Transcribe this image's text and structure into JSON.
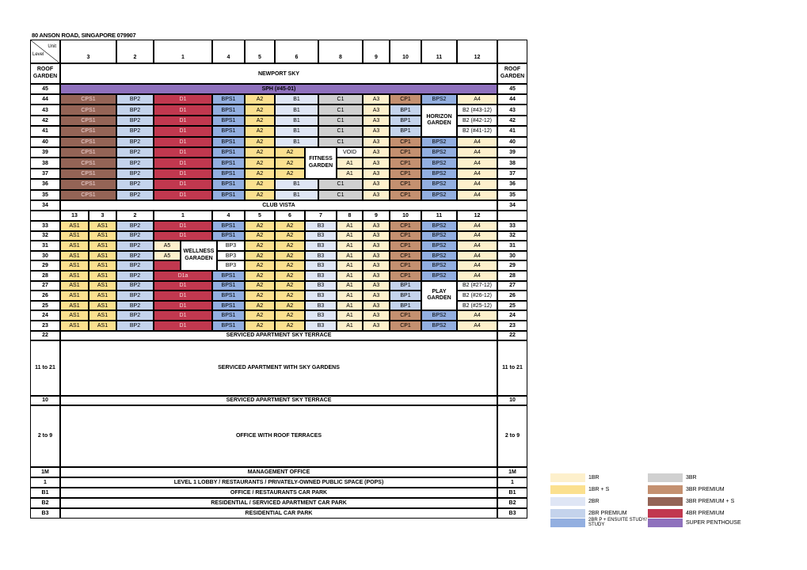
{
  "address": "80 ANSON ROAD, SINGAPORE 079907",
  "colors": {
    "A1": "#fdf0cc",
    "A3": "#fdf0cc",
    "A4": "#fdf0cc",
    "A5": "#fdf0cc",
    "AS1": "#fbe08f",
    "A2": "#fbe08f",
    "B1": "#dfe6f5",
    "B3": "#dfe6f5",
    "BP1": "#c4d3ec",
    "BP2": "#c4d3ec",
    "BPS1": "#93afe0",
    "BPS2": "#93afe0",
    "C1": "#d0d0d0",
    "CP1": "#c49070",
    "CPS1": "#946456",
    "D1": "#c1384f",
    "D1a": "#c1384f",
    "SPH": "#8f71bd",
    "B2": "#ffffff"
  },
  "header": {
    "unit_label": "Unit",
    "level_label": "Level",
    "columns": [
      "3",
      "2",
      "1",
      "4",
      "5",
      "6",
      "8",
      "9",
      "10",
      "11",
      "12"
    ]
  },
  "sub_header_columns": [
    "13",
    "3",
    "2",
    "1",
    "4",
    "5",
    "6",
    "7",
    "8",
    "9",
    "10",
    "11",
    "12"
  ],
  "upper_rows": [
    {
      "level": "44",
      "cells": [
        "CPS1",
        "BP2",
        "D1",
        "BPS1",
        "A2",
        "B1",
        "C1",
        "A3",
        "CP1",
        "BPS2",
        "A4"
      ]
    },
    {
      "level": "43",
      "cells": [
        "CPS1",
        "BP2",
        "D1",
        "BPS1",
        "A2",
        "B1",
        "C1",
        "A3",
        "BP1",
        "",
        "B2 (#43-12)"
      ]
    },
    {
      "level": "42",
      "cells": [
        "CPS1",
        "BP2",
        "D1",
        "BPS1",
        "A2",
        "B1",
        "C1",
        "A3",
        "BP1",
        "",
        "B2 (#42-12)"
      ]
    },
    {
      "level": "41",
      "cells": [
        "CPS1",
        "BP2",
        "D1",
        "BPS1",
        "A2",
        "B1",
        "C1",
        "A3",
        "BP1",
        "",
        "B2 (#41-12)"
      ]
    },
    {
      "level": "40",
      "cells": [
        "CPS1",
        "BP2",
        "D1",
        "BPS1",
        "A2",
        "B1",
        "C1",
        "A3",
        "CP1",
        "BPS2",
        "A4"
      ]
    },
    {
      "level": "39",
      "cells": [
        "CPS1",
        "BP2",
        "D1",
        "BPS1",
        "A2",
        "A2",
        "VOID",
        "A3",
        "CP1",
        "BPS2",
        "A4"
      ]
    },
    {
      "level": "38",
      "cells": [
        "CPS1",
        "BP2",
        "D1",
        "BPS1",
        "A2",
        "A2",
        "A1",
        "A3",
        "CP1",
        "BPS2",
        "A4"
      ]
    },
    {
      "level": "37",
      "cells": [
        "CPS1",
        "BP2",
        "D1",
        "BPS1",
        "A2",
        "A2",
        "A1",
        "A3",
        "CP1",
        "BPS2",
        "A4"
      ]
    },
    {
      "level": "36",
      "cells": [
        "CPS1",
        "BP2",
        "D1",
        "BPS1",
        "A2",
        "B1",
        "C1",
        "A3",
        "CP1",
        "BPS2",
        "A4"
      ]
    },
    {
      "level": "35",
      "cells": [
        "CPS1",
        "BP2",
        "D1",
        "BPS1",
        "A2",
        "B1",
        "C1",
        "A3",
        "CP1",
        "BPS2",
        "A4"
      ]
    }
  ],
  "lower_rows": [
    {
      "level": "33",
      "cells": [
        "AS1",
        "AS1",
        "BP2",
        "D1",
        "BPS1",
        "A2",
        "A2",
        "B3",
        "A1",
        "A3",
        "CP1",
        "BPS2",
        "A4"
      ]
    },
    {
      "level": "32",
      "cells": [
        "AS1",
        "AS1",
        "BP2",
        "D1",
        "BPS1",
        "A2",
        "A2",
        "B3",
        "A1",
        "A3",
        "CP1",
        "BPS2",
        "A4"
      ]
    },
    {
      "level": "31",
      "cells": [
        "AS1",
        "AS1",
        "BP2",
        "A5",
        "BP3",
        "A2",
        "A2",
        "B3",
        "A1",
        "A3",
        "CP1",
        "BPS2",
        "A4"
      ]
    },
    {
      "level": "30",
      "cells": [
        "AS1",
        "AS1",
        "BP2",
        "A5",
        "BP3",
        "A2",
        "A2",
        "B3",
        "A1",
        "A3",
        "CP1",
        "BPS2",
        "A4"
      ]
    },
    {
      "level": "29",
      "cells": [
        "AS1",
        "AS1",
        "BP2",
        "",
        "BP3",
        "A2",
        "A2",
        "B3",
        "A1",
        "A3",
        "CP1",
        "BPS2",
        "A4"
      ]
    },
    {
      "level": "28",
      "cells": [
        "AS1",
        "AS1",
        "BP2",
        "D1a",
        "BPS1",
        "A2",
        "A2",
        "B3",
        "A1",
        "A3",
        "CP1",
        "BPS2",
        "A4"
      ]
    },
    {
      "level": "27",
      "cells": [
        "AS1",
        "AS1",
        "BP2",
        "D1",
        "BPS1",
        "A2",
        "A2",
        "B3",
        "A1",
        "A3",
        "BP1",
        "",
        "B2 (#27-12)"
      ]
    },
    {
      "level": "26",
      "cells": [
        "AS1",
        "AS1",
        "BP2",
        "D1",
        "BPS1",
        "A2",
        "A2",
        "B3",
        "A1",
        "A3",
        "BP1",
        "",
        "B2 (#26-12)"
      ]
    },
    {
      "level": "25",
      "cells": [
        "AS1",
        "AS1",
        "BP2",
        "D1",
        "BPS1",
        "A2",
        "A2",
        "B3",
        "A1",
        "A3",
        "BP1",
        "",
        "B2 (#25-12)"
      ]
    },
    {
      "level": "24",
      "cells": [
        "AS1",
        "AS1",
        "BP2",
        "D1",
        "BPS1",
        "A2",
        "A2",
        "B3",
        "A1",
        "A3",
        "CP1",
        "BPS2",
        "A4"
      ]
    },
    {
      "level": "23",
      "cells": [
        "AS1",
        "AS1",
        "BP2",
        "D1",
        "BPS1",
        "A2",
        "A2",
        "B3",
        "A1",
        "A3",
        "CP1",
        "BPS2",
        "A4"
      ]
    }
  ],
  "special": {
    "roof_garden_left": "ROOF GARDEN",
    "newport_sky": "NEWPORT SKY",
    "roof_garden_right": "ROOF GARDEN",
    "level_45": "45",
    "sph": "SPH (#45-01)",
    "level_34": "34",
    "club_vista": "CLUB VISTA",
    "horizon_garden": "HORIZON GARDEN",
    "fitness_garden": "FITNESS GARDEN",
    "wellness_garden": "WELLNESS GARADEN",
    "play_garden": "PLAY GARDEN"
  },
  "podium_rows": [
    {
      "level": "22",
      "label": "SERVICED APARTMENT SKY TERRACE"
    },
    {
      "level": "11 to 21",
      "label": "SERVICED APARTMENT WITH SKY GARDENS"
    },
    {
      "level": "10",
      "label": "SERVICED APARTMENT SKY TERRACE"
    },
    {
      "level": "2 to 9",
      "label": "OFFICE WITH ROOF TERRACES"
    },
    {
      "level": "1M",
      "label": "MANAGEMENT OFFICE"
    },
    {
      "level": "1",
      "label": "LEVEL 1 LOBBY / RESTAURANTS / PRIVATELY-OWNED PUBLIC SPACE (POPS)"
    },
    {
      "level": "B1",
      "label": "OFFICE / RESTAURANTS CAR PARK"
    },
    {
      "level": "B2",
      "label": "RESIDENTIAL / SERVICED APARTMENT CAR  PARK"
    },
    {
      "level": "B3",
      "label": "RESIDENTIAL CAR PARK"
    }
  ],
  "legend": [
    {
      "label": "1BR",
      "color": "#fdf0cc"
    },
    {
      "label": "1BR + S",
      "color": "#fbe08f"
    },
    {
      "label": "2BR",
      "color": "#dfe6f5"
    },
    {
      "label": "2BR PREMIUM",
      "color": "#c4d3ec"
    },
    {
      "label": "2BR P + ENSUITE STUDY/ STUDY",
      "color": "#93afe0"
    },
    {
      "label": "3BR",
      "color": "#d0d0d0"
    },
    {
      "label": "3BR PREMIUM",
      "color": "#c49070"
    },
    {
      "label": "3BR PREMIUM + S",
      "color": "#946456"
    },
    {
      "label": "4BR PREMIUM",
      "color": "#c1384f"
    },
    {
      "label": "SUPER PENTHOUSE",
      "color": "#8f71bd"
    }
  ]
}
